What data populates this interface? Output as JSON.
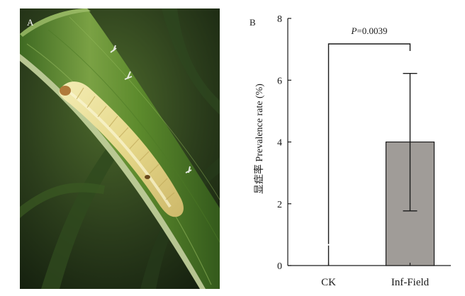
{
  "panels": {
    "photo_label": "A",
    "chart_label": "B"
  },
  "photo": {
    "subject": "caterpillar larva on rice leaf"
  },
  "colors": {
    "bar_fill": "#a09c98",
    "axis": "#1a1a1a",
    "leaf_green": "#5f8a2e",
    "larva": "#e9dd8e"
  },
  "chart_data": {
    "type": "bar",
    "categories": [
      "CK",
      "Inf-Field"
    ],
    "values": [
      0,
      4.0
    ],
    "error_upper": [
      0.65,
      6.22
    ],
    "error_lower": [
      0,
      1.77
    ],
    "ylabel": "显症率 Prevalence rate (%)",
    "ylim": [
      0,
      8
    ],
    "yticks": [
      "0",
      "2",
      "4",
      "6",
      "8"
    ],
    "annotation": {
      "p_symbol": "P",
      "p_value": "=0.0039"
    },
    "grid": false
  }
}
